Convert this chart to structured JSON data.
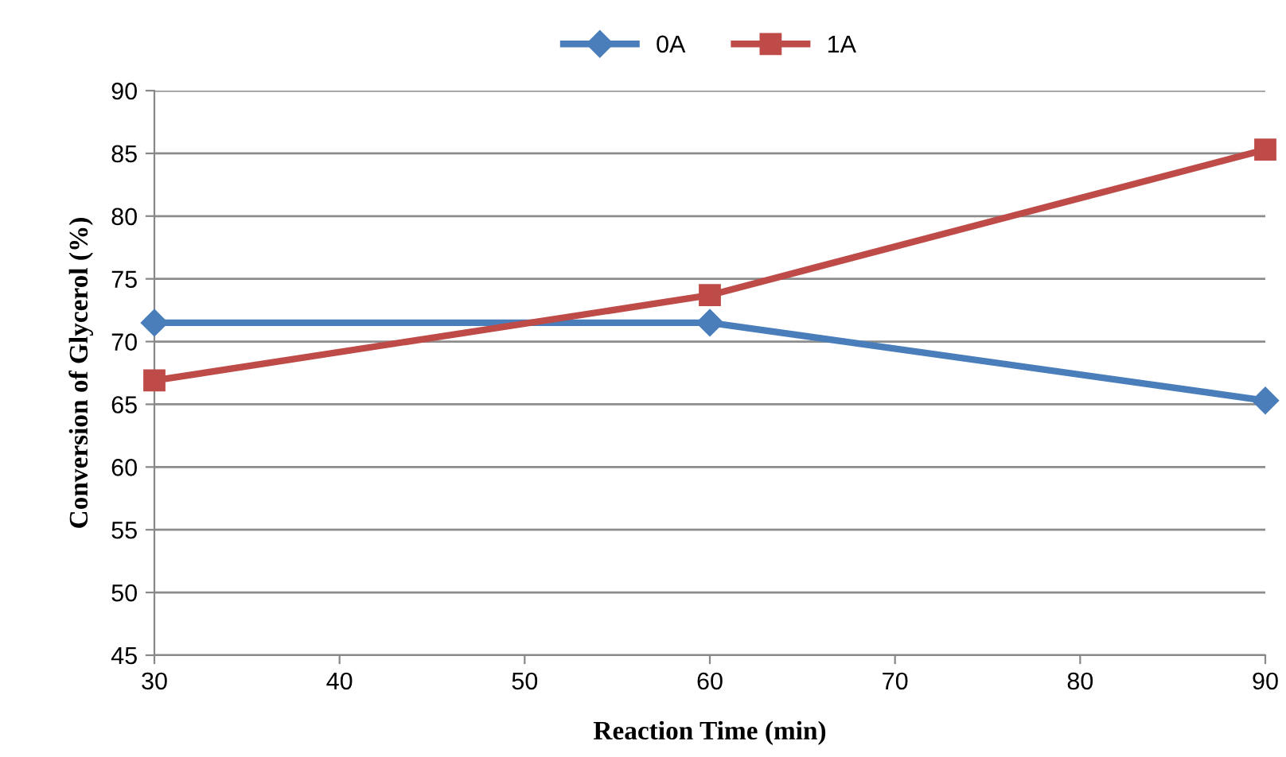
{
  "chart_data": {
    "type": "line",
    "xlabel": "Reaction Time (min)",
    "ylabel": "Conversion of Glycerol (%)",
    "x": [
      30,
      60,
      90
    ],
    "series": [
      {
        "name": "0A",
        "color": "#4a7ebb",
        "values": [
          71.5,
          71.5,
          65.3
        ],
        "marker": "diamond"
      },
      {
        "name": "1A",
        "color": "#be4b48",
        "values": [
          66.9,
          73.7,
          85.3
        ],
        "marker": "square"
      }
    ],
    "xlim": [
      30,
      90
    ],
    "xticks": [
      30,
      40,
      50,
      60,
      70,
      80,
      90
    ],
    "ylim": [
      45,
      90
    ],
    "yticks": [
      45,
      50,
      55,
      60,
      65,
      70,
      75,
      80,
      85,
      90
    ],
    "grid": "y",
    "legend": "top",
    "line_style": "solid"
  }
}
